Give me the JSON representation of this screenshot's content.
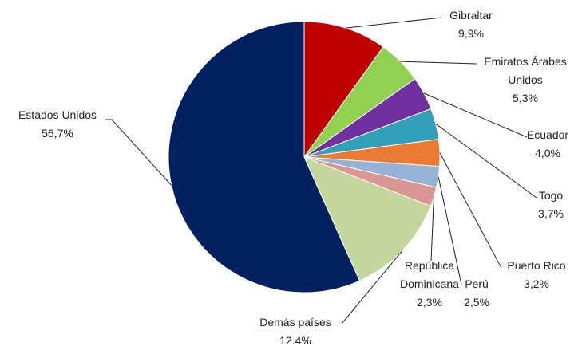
{
  "chart_data": {
    "type": "pie",
    "categories": [
      "Gibraltar",
      "Emiratos Árabes Unidos",
      "Ecuador",
      "Togo",
      "Puerto Rico",
      "Perú",
      "República Dominicana",
      "Demás países",
      "Estados Unidos"
    ],
    "values": [
      9.9,
      5.3,
      4.0,
      3.7,
      3.2,
      2.5,
      2.3,
      12.4,
      56.7
    ],
    "value_labels": [
      "9,9%",
      "5,3%",
      "4,0%",
      "3,7%",
      "3,2%",
      "2,5%",
      "2,3%",
      "12.4%",
      "56,7%"
    ],
    "colors": [
      "#c00000",
      "#92d050",
      "#7030a0",
      "#31a0b8",
      "#e97b32",
      "#95b3d7",
      "#d99694",
      "#c3d69b",
      "#002060"
    ]
  }
}
